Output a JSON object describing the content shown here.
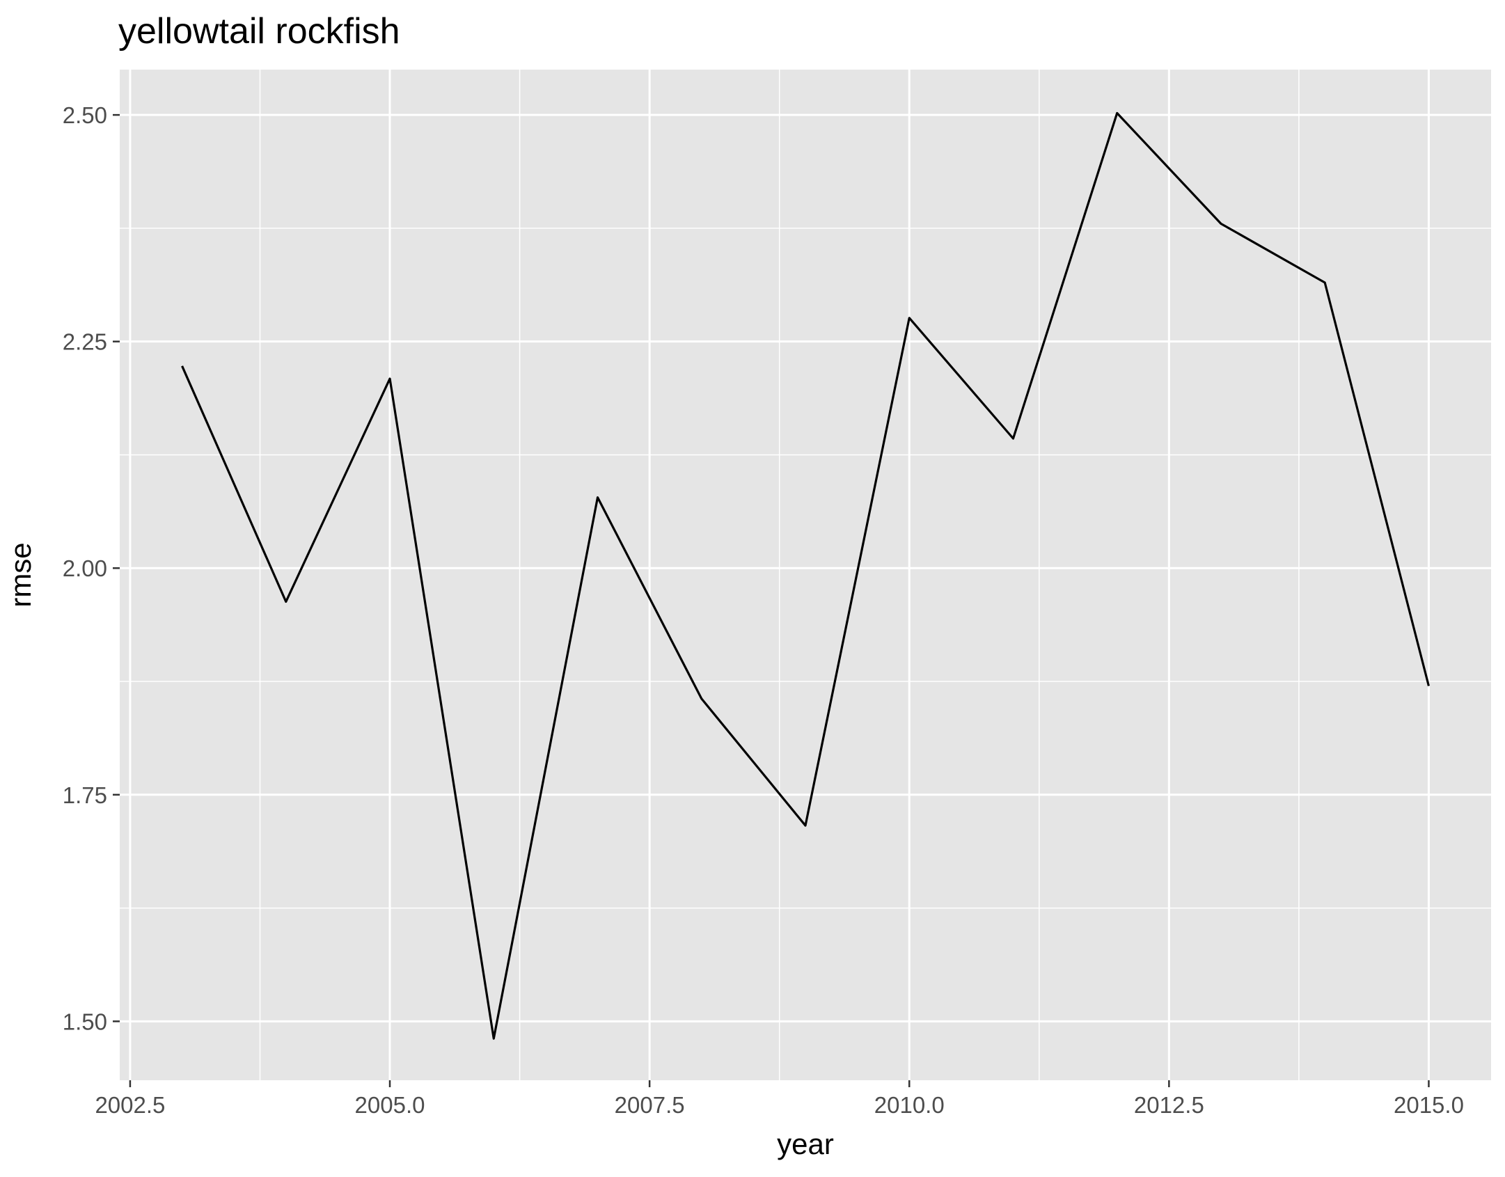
{
  "chart_data": {
    "type": "line",
    "title": "yellowtail rockfish",
    "xlabel": "year",
    "ylabel": "rmse",
    "xlim": [
      2002.4,
      2015.6
    ],
    "ylim": [
      1.435,
      2.55
    ],
    "x_ticks": [
      2002.5,
      2005.0,
      2007.5,
      2010.0,
      2012.5,
      2015.0
    ],
    "x_tick_labels": [
      "2002.5",
      "2005.0",
      "2007.5",
      "2010.0",
      "2012.5",
      "2015.0"
    ],
    "y_ticks": [
      1.5,
      1.75,
      2.0,
      2.25,
      2.5
    ],
    "y_tick_labels": [
      "1.50",
      "1.75",
      "2.00",
      "2.25",
      "2.50"
    ],
    "grid": true,
    "background_color": "#e5e5e5",
    "grid_color": "#ffffff",
    "line_color": "#000000",
    "series": [
      {
        "x": [
          2003,
          2004,
          2005,
          2006,
          2007,
          2008,
          2009,
          2010,
          2011,
          2012,
          2013,
          2014,
          2015
        ],
        "values": [
          2.223,
          1.963,
          2.209,
          1.481,
          2.078,
          1.856,
          1.716,
          2.276,
          2.143,
          2.502,
          2.38,
          2.315,
          1.87
        ]
      }
    ]
  }
}
